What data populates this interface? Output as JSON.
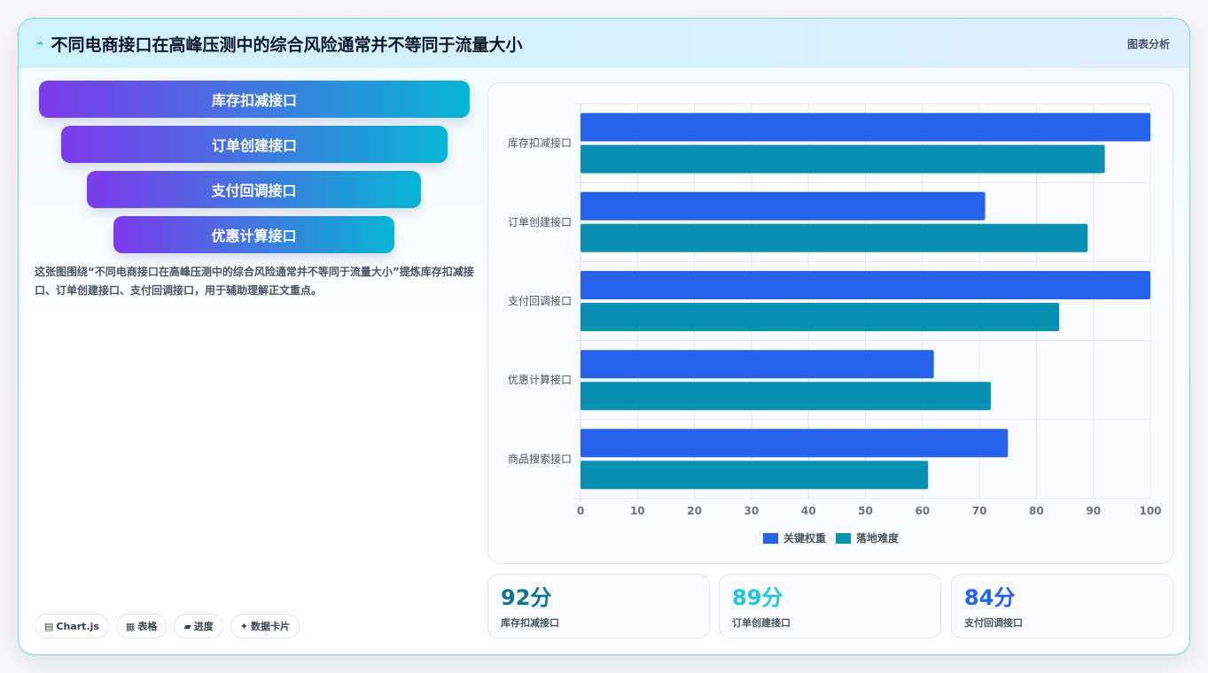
{
  "header": {
    "title": "不同电商接口在高峰压测中的综合风险通常并不等同于流量大小",
    "tag": "图表分析"
  },
  "funnel": [
    "库存扣减接口",
    "订单创建接口",
    "支付回调接口",
    "优惠计算接口"
  ],
  "description": "这张图围绕“不同电商接口在高峰压测中的综合风险通常并不等同于流量大小”提炼库存扣减接口、订单创建接口、支付回调接口，用于辅助理解正文重点。",
  "chips": [
    {
      "icon": "chart-icon",
      "glyph": "▤",
      "label": "Chart.js"
    },
    {
      "icon": "table-icon",
      "glyph": "▦",
      "label": "表格"
    },
    {
      "icon": "progress-icon",
      "glyph": "▰",
      "label": "进度"
    },
    {
      "icon": "sparkle-icon",
      "glyph": "✦",
      "label": "数据卡片"
    }
  ],
  "stats": [
    {
      "value": "92分",
      "label": "库存扣减接口",
      "color": "#0e7490"
    },
    {
      "value": "89分",
      "label": "订单创建接口",
      "color": "#22c5dc"
    },
    {
      "value": "84分",
      "label": "支付回调接口",
      "color": "#2563eb"
    }
  ],
  "chart_data": {
    "type": "bar",
    "orientation": "horizontal",
    "categories": [
      "库存扣减接口",
      "订单创建接口",
      "支付回调接口",
      "优惠计算接口",
      "商品搜索接口"
    ],
    "series": [
      {
        "name": "关键权重",
        "color": "#2563eb",
        "values": [
          100,
          71,
          100,
          62,
          75
        ]
      },
      {
        "name": "落地难度",
        "color": "#0891b2",
        "values": [
          92,
          89,
          84,
          72,
          61
        ]
      }
    ],
    "xlim": [
      0,
      100
    ],
    "xticks": [
      0,
      10,
      20,
      30,
      40,
      50,
      60,
      70,
      80,
      90,
      100
    ],
    "grid": true,
    "legend": "bottom"
  }
}
